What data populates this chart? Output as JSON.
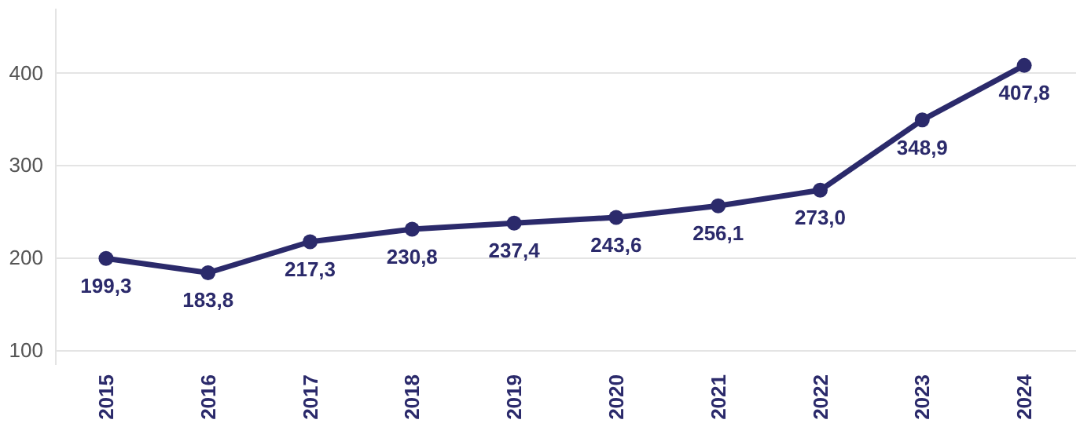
{
  "chart_data": {
    "type": "line",
    "categories": [
      "2015",
      "2016",
      "2017",
      "2018",
      "2019",
      "2020",
      "2021",
      "2022",
      "2023",
      "2024"
    ],
    "series": [
      {
        "color": "#2b2a6b",
        "values": [
          199.3,
          183.8,
          217.3,
          230.8,
          237.4,
          243.6,
          256.1,
          273.0,
          348.9,
          407.8
        ],
        "value_labels": [
          "199,3",
          "183,8",
          "217,3",
          "230,8",
          "237,4",
          "243,6",
          "256,1",
          "273,0",
          "348,9",
          "407,8"
        ]
      }
    ],
    "ylim": [
      85,
      470
    ],
    "yticks": [
      100,
      200,
      300,
      400
    ],
    "grid": "y",
    "marker": "circle",
    "line_style": "solid",
    "legend": false
  }
}
